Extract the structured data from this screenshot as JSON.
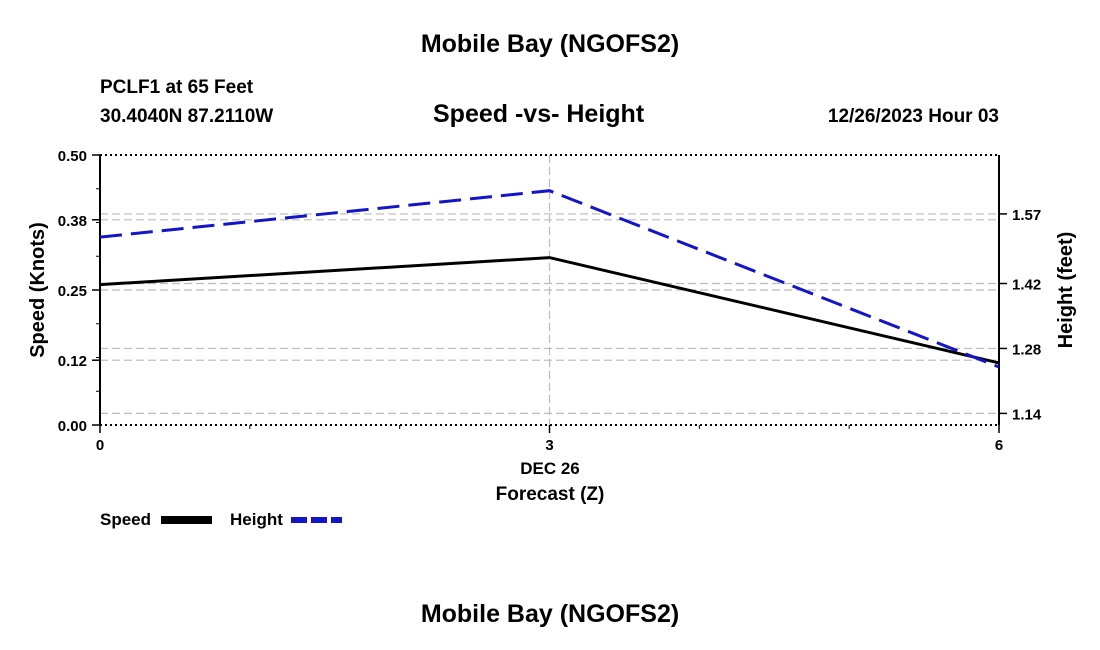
{
  "page": {
    "title_top": "Mobile Bay (NGOFS2)",
    "title_bottom": "Mobile Bay (NGOFS2)",
    "station": "PCLF1 at 65 Feet",
    "coords": "30.4040N  87.2110W",
    "datetime": "12/26/2023 Hour 03"
  },
  "legend": {
    "speed_label": "Speed",
    "height_label": "Height"
  },
  "colors": {
    "speed": "#000000",
    "height": "#1414c8",
    "grid": "#bbbbbb"
  },
  "chart_data": {
    "type": "line",
    "title": "Speed -vs- Height",
    "xlabel": "Forecast (Z)",
    "x_date_label": "DEC 26",
    "ylabel": "Speed (Knots)",
    "y2label": "Height (feet)",
    "x": [
      0,
      3,
      6
    ],
    "x_ticks": [
      "0",
      "3",
      "6"
    ],
    "xlim": [
      0,
      6
    ],
    "ylim": [
      0.0,
      0.5
    ],
    "y_ticks": [
      "0.00",
      "0.12",
      "0.25",
      "0.38",
      "0.50"
    ],
    "y2lim": [
      1.115,
      1.697
    ],
    "y2_ticks": [
      "1.14",
      "1.28",
      "1.42",
      "1.57"
    ],
    "series": [
      {
        "name": "Speed",
        "axis": "left",
        "style": "solid",
        "values": [
          0.26,
          0.31,
          0.115
        ]
      },
      {
        "name": "Height",
        "axis": "right",
        "style": "dashed",
        "values": [
          1.52,
          1.62,
          1.24
        ]
      }
    ]
  }
}
